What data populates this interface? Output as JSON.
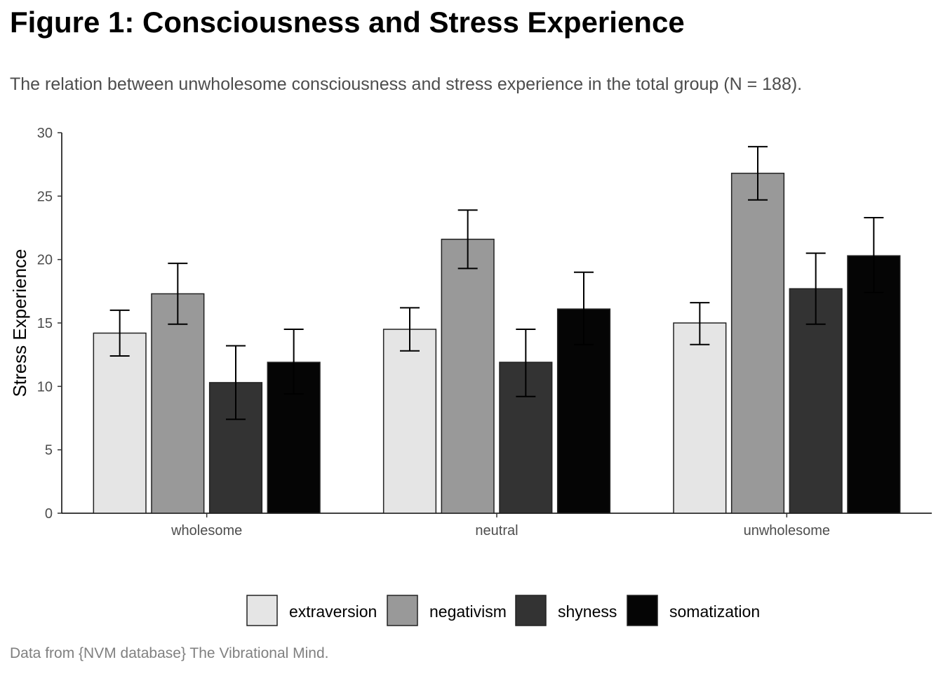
{
  "figure": {
    "title": "Figure 1: Consciousness and Stress Experience",
    "subtitle": "The relation between unwholesome consciousness and stress experience in the total group (N = 188).",
    "caption": "Data from {NVM database} The Vibrational Mind."
  },
  "chart_data": {
    "type": "bar",
    "title": "Figure 1: Consciousness and Stress Experience",
    "subtitle": "The relation between unwholesome consciousness and stress experience in the total group (N = 188).",
    "xlabel": "",
    "ylabel": "Stress Experience",
    "ylim": [
      0,
      30
    ],
    "yticks": [
      0,
      5,
      10,
      15,
      20,
      25,
      30
    ],
    "categories": [
      "wholesome",
      "neutral",
      "unwholesome"
    ],
    "series": [
      {
        "name": "extraversion",
        "color": "#e5e5e5",
        "values": [
          14.2,
          14.5,
          15.0
        ],
        "error_low": [
          12.4,
          12.8,
          13.3
        ],
        "error_high": [
          16.0,
          16.2,
          16.6
        ]
      },
      {
        "name": "negativism",
        "color": "#999999",
        "values": [
          17.3,
          21.6,
          26.8
        ],
        "error_low": [
          14.9,
          19.3,
          24.7
        ],
        "error_high": [
          19.7,
          23.9,
          28.9
        ]
      },
      {
        "name": "shyness",
        "color": "#333333",
        "values": [
          10.3,
          11.9,
          17.7
        ],
        "error_low": [
          7.4,
          9.2,
          14.9
        ],
        "error_high": [
          13.2,
          14.5,
          20.5
        ]
      },
      {
        "name": "somatization",
        "color": "#050505",
        "values": [
          11.9,
          16.1,
          20.3
        ],
        "error_low": [
          9.4,
          13.3,
          17.4
        ],
        "error_high": [
          14.5,
          19.0,
          23.3
        ]
      }
    ],
    "legend_position": "bottom",
    "grid": false
  }
}
